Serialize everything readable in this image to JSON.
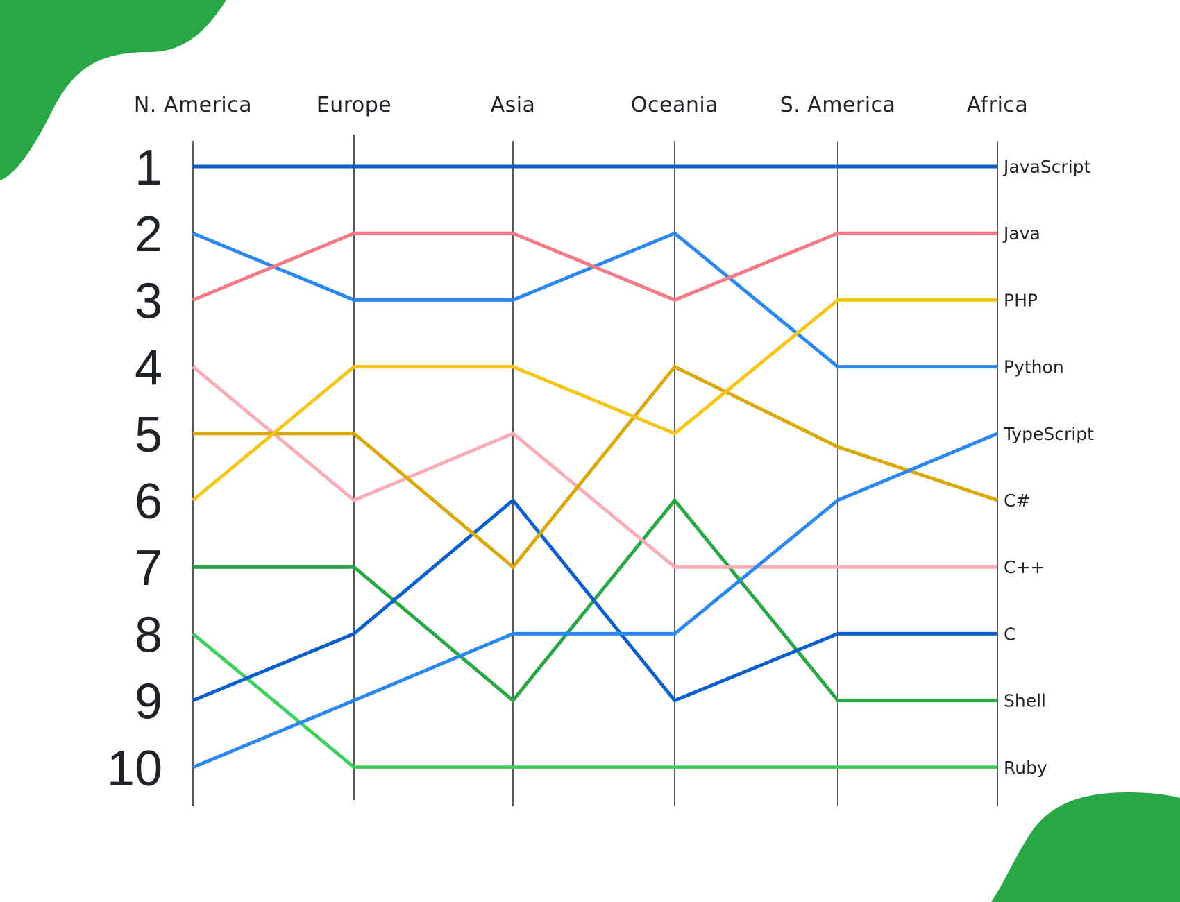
{
  "chart_data": {
    "type": "line",
    "title": "",
    "xlabel": "",
    "ylabel": "",
    "categories": [
      "N. America",
      "Europe",
      "Asia",
      "Oceania",
      "S. America",
      "Africa"
    ],
    "ranks": [
      "1",
      "2",
      "3",
      "4",
      "5",
      "6",
      "7",
      "8",
      "9",
      "10"
    ],
    "ylim": [
      1,
      10
    ],
    "y_inverted": true,
    "grid": false,
    "legend": "right-end labels",
    "series": [
      {
        "name": "JavaScript",
        "color": "#0b5fcc",
        "values": [
          1,
          1,
          1,
          1,
          1,
          1
        ]
      },
      {
        "name": "Java",
        "color": "#f47a88",
        "values": [
          3,
          2,
          2,
          3,
          2,
          2
        ]
      },
      {
        "name": "PHP",
        "color": "#f5c518",
        "values": [
          6,
          4,
          4,
          5,
          3,
          3
        ]
      },
      {
        "name": "Python",
        "color": "#2b88f0",
        "values": [
          2,
          3,
          3,
          2,
          4,
          4
        ]
      },
      {
        "name": "TypeScript",
        "color": "#2b88f0",
        "values": [
          10,
          9,
          8,
          8,
          6,
          5
        ]
      },
      {
        "name": "C#",
        "color": "#d9a80a",
        "values": [
          5,
          5,
          7,
          4,
          5.2,
          6
        ]
      },
      {
        "name": "C++",
        "color": "#f9adb7",
        "values": [
          4,
          6,
          5,
          7,
          7,
          7
        ]
      },
      {
        "name": "C",
        "color": "#0b5fcc",
        "values": [
          9,
          8,
          6,
          9,
          8,
          8
        ]
      },
      {
        "name": "Shell",
        "color": "#28a745",
        "values": [
          7,
          7,
          9,
          6,
          9,
          9
        ]
      },
      {
        "name": "Ruby",
        "color": "#3ecf5e",
        "values": [
          8,
          10,
          10,
          10,
          10,
          10
        ]
      }
    ]
  },
  "decor": {
    "blob_color": "#28a745"
  }
}
